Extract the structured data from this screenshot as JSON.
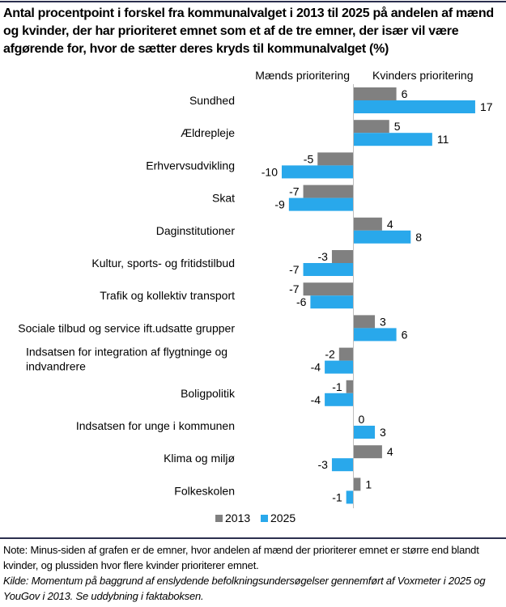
{
  "title": "Antal procentpoint i forskel fra kommunalvalget i 2013 til 2025 på andelen af mænd og kvinder, der har prioriteret emnet som et af de tre emner, der især vil være afgørende for, hvor de sætter deres kryds til kommunalvalget  (%)",
  "note": "Note: Minus-siden af grafen er de emner, hvor andelen af mænd der prioriterer emnet er større end blandt kvinder, og plussiden hvor flere kvinder prioriterer emnet.",
  "source": "Kilde: Momentum på baggrund af enslydende befolkningsundersøgelser gennemført af Voxmeter i 2025 og YouGov i 2013. Se uddybning i faktaboksen.",
  "chart_data": {
    "type": "bar",
    "orientation": "horizontal",
    "title": "Antal procentpoint i forskel fra kommunalvalget i 2013 til 2025 på andelen af mænd og kvinder, der har prioriteret emnet som et af de tre emner, der især vil være afgørende for, hvor de sætter deres kryds til kommunalvalget  (%)",
    "side_labels": {
      "negative": "Mænds prioritering",
      "positive": "Kvinders prioritering"
    },
    "categories": [
      "Sundhed",
      "Ældrepleje",
      "Erhvervsudvikling",
      "Skat",
      "Daginstitutioner",
      "Kultur, sports- og fritidstilbud",
      "Trafik og kollektiv transport",
      "Sociale tilbud og service ift.udsatte grupper",
      "Indsatsen for integration af flygtninge og indvandrere",
      "Boligpolitik",
      "Indsatsen for unge i kommunen",
      "Klima og miljø",
      "Folkeskolen"
    ],
    "series": [
      {
        "name": "2013",
        "color": "#808080",
        "values": [
          6,
          5,
          -5,
          -7,
          4,
          -3,
          -7,
          3,
          -2,
          -1,
          0,
          4,
          1
        ]
      },
      {
        "name": "2025",
        "color": "#29a8eb",
        "values": [
          17,
          11,
          -10,
          -9,
          8,
          -7,
          -6,
          6,
          -4,
          -4,
          3,
          -3,
          -1
        ]
      }
    ],
    "xlim": [
      -10,
      17
    ],
    "grid": false,
    "legend_position": "bottom",
    "data_labels": true
  }
}
